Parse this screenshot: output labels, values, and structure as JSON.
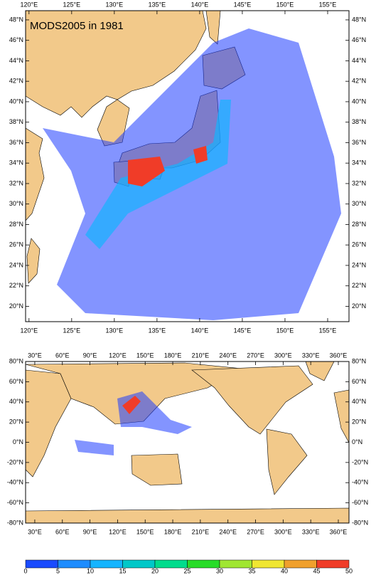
{
  "top_map": {
    "title": "MODS2005 in 1981",
    "xlim": [
      119.6,
      157.5
    ],
    "ylim": [
      18.5,
      48.9
    ],
    "xticks": [
      {
        "value": 120,
        "label": "120°E"
      },
      {
        "value": 125,
        "label": "125°E"
      },
      {
        "value": 130,
        "label": "130°E"
      },
      {
        "value": 135,
        "label": "135°E"
      },
      {
        "value": 140,
        "label": "140°E"
      },
      {
        "value": 145,
        "label": "145°E"
      },
      {
        "value": 150,
        "label": "150°E"
      },
      {
        "value": 155,
        "label": "155°E"
      }
    ],
    "yticks": [
      {
        "value": 20,
        "label": "20°N"
      },
      {
        "value": 22,
        "label": "22°N"
      },
      {
        "value": 24,
        "label": "24°N"
      },
      {
        "value": 26,
        "label": "26°N"
      },
      {
        "value": 28,
        "label": "28°N"
      },
      {
        "value": 30,
        "label": "30°N"
      },
      {
        "value": 32,
        "label": "32°N"
      },
      {
        "value": 34,
        "label": "34°N"
      },
      {
        "value": 36,
        "label": "36°N"
      },
      {
        "value": 38,
        "label": "38°N"
      },
      {
        "value": 40,
        "label": "40°N"
      },
      {
        "value": 42,
        "label": "42°N"
      },
      {
        "value": 44,
        "label": "44°N"
      },
      {
        "value": 46,
        "label": "46°N"
      },
      {
        "value": 48,
        "label": "48°N"
      }
    ]
  },
  "bottom_map": {
    "xlim": [
      20,
      371.6
    ],
    "ylim": [
      -80,
      80
    ],
    "xticks": [
      {
        "value": 30,
        "label": "30°E"
      },
      {
        "value": 60,
        "label": "60°E"
      },
      {
        "value": 90,
        "label": "90°E"
      },
      {
        "value": 120,
        "label": "120°E"
      },
      {
        "value": 150,
        "label": "150°E"
      },
      {
        "value": 180,
        "label": "180°E"
      },
      {
        "value": 210,
        "label": "210°E"
      },
      {
        "value": 240,
        "label": "240°E"
      },
      {
        "value": 270,
        "label": "270°E"
      },
      {
        "value": 300,
        "label": "300°E"
      },
      {
        "value": 330,
        "label": "330°E"
      },
      {
        "value": 360,
        "label": "360°E"
      }
    ],
    "yticks": [
      {
        "value": -80,
        "label": "-80°N"
      },
      {
        "value": -60,
        "label": "-60°N"
      },
      {
        "value": -40,
        "label": "-40°N"
      },
      {
        "value": -20,
        "label": "-20°N"
      },
      {
        "value": 0,
        "label": "0°N"
      },
      {
        "value": 20,
        "label": "20°N"
      },
      {
        "value": 40,
        "label": "40°N"
      },
      {
        "value": 60,
        "label": "60°N"
      },
      {
        "value": 80,
        "label": "80°N"
      }
    ]
  },
  "colorbar": {
    "levels": [
      0,
      5,
      10,
      15,
      20,
      25,
      30,
      35,
      40,
      45,
      50
    ],
    "colors": [
      "#1a4bff",
      "#1e8cff",
      "#14b4ff",
      "#00c8c8",
      "#00dc8c",
      "#28dc28",
      "#a0e632",
      "#f0e632",
      "#f0a02d",
      "#f03c28"
    ]
  }
}
